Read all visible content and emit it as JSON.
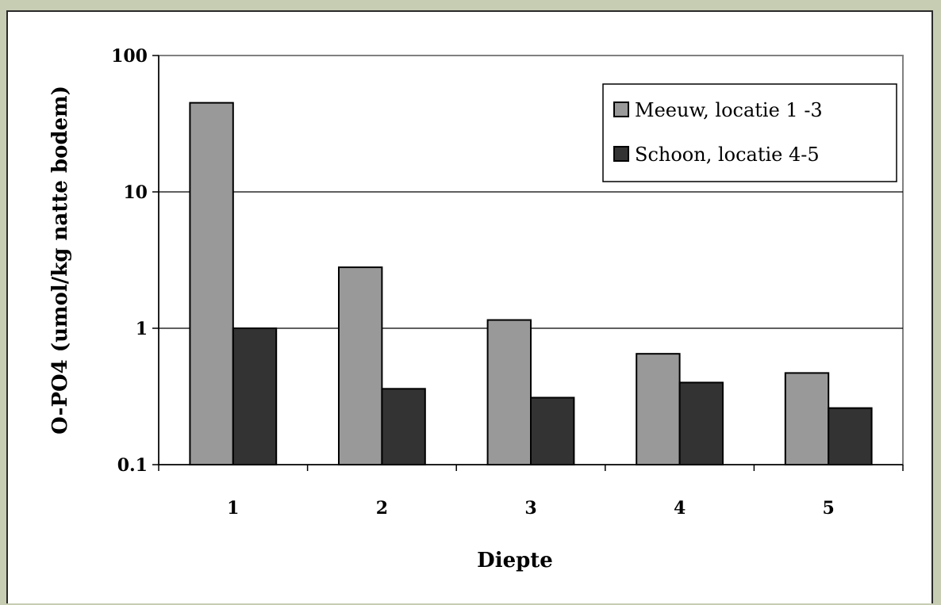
{
  "chart_data": {
    "type": "bar",
    "categories": [
      "1",
      "2",
      "3",
      "4",
      "5"
    ],
    "series": [
      {
        "name": "Meeuw, locatie 1 -3",
        "values": [
          45,
          2.8,
          1.15,
          0.65,
          0.47
        ],
        "color": "#999999"
      },
      {
        "name": "Schoon, locatie 4-5",
        "values": [
          1.0,
          0.36,
          0.31,
          0.4,
          0.26
        ],
        "color": "#333333"
      }
    ],
    "xlabel": "Diepte",
    "ylabel": "O-PO4 (umol/kg natte bodem)",
    "yscale": "log",
    "ylim": [
      0.1,
      100
    ],
    "yticks": [
      0.1,
      1,
      10,
      100
    ],
    "ytick_labels": [
      "0.1",
      "1",
      "10",
      "100"
    ],
    "grid": "horizontal major lines",
    "legend_position": "top-right"
  }
}
